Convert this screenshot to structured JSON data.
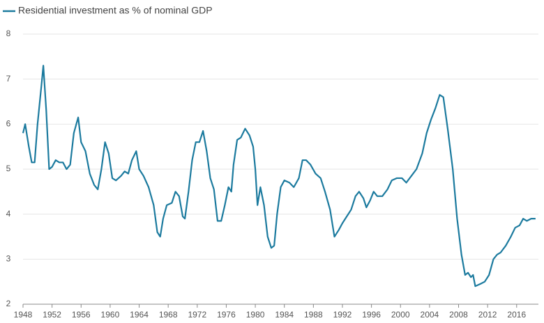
{
  "chart_data": {
    "type": "line",
    "x": [
      1948,
      1948.3,
      1948.8,
      1949.2,
      1949.6,
      1950,
      1950.5,
      1950.8,
      1951.2,
      1951.6,
      1952,
      1952.5,
      1953,
      1953.5,
      1954,
      1954.5,
      1955,
      1955.6,
      1956,
      1956.6,
      1957.2,
      1957.8,
      1958.3,
      1958.8,
      1959.3,
      1959.8,
      1960.3,
      1960.8,
      1961.5,
      1962,
      1962.5,
      1963,
      1963.6,
      1964,
      1964.6,
      1965.3,
      1966,
      1966.5,
      1966.9,
      1967.3,
      1967.8,
      1968.5,
      1969,
      1969.5,
      1970,
      1970.3,
      1970.8,
      1971.3,
      1971.8,
      1972.3,
      1972.8,
      1973.3,
      1973.8,
      1974.3,
      1974.8,
      1975.3,
      1975.8,
      1976.3,
      1976.7,
      1977,
      1977.5,
      1978,
      1978.6,
      1979.2,
      1979.7,
      1980,
      1980.3,
      1980.7,
      1981.2,
      1981.7,
      1982.2,
      1982.6,
      1983,
      1983.5,
      1984,
      1984.7,
      1985.3,
      1986,
      1986.5,
      1987,
      1987.6,
      1988.3,
      1989,
      1989.6,
      1990.3,
      1990.9,
      1991.5,
      1992,
      1992.6,
      1993.2,
      1993.8,
      1994.3,
      1994.9,
      1995.3,
      1995.8,
      1996.3,
      1996.8,
      1997.5,
      1998.2,
      1998.8,
      1999.5,
      2000.2,
      2000.8,
      2001.5,
      2002.2,
      2003,
      2003.6,
      2004.2,
      2004.8,
      2005.4,
      2005.9,
      2006.5,
      2007.2,
      2007.8,
      2008.4,
      2008.9,
      2009.3,
      2009.7,
      2010,
      2010.3,
      2011,
      2011.6,
      2012.2,
      2012.8,
      2013.3,
      2013.8,
      2014.5,
      2015.2,
      2015.8,
      2016.4,
      2016.9,
      2017.4,
      2018,
      2018.6
    ],
    "series": [
      {
        "name": "Residential investment as % of nominal GDP",
        "color": "#1b7a9e",
        "values": [
          5.8,
          6.0,
          5.5,
          5.15,
          5.15,
          6.0,
          6.8,
          7.3,
          6.3,
          5.0,
          5.05,
          5.2,
          5.15,
          5.15,
          5.0,
          5.1,
          5.8,
          6.15,
          5.6,
          5.4,
          4.9,
          4.65,
          4.55,
          5.0,
          5.6,
          5.35,
          4.8,
          4.75,
          4.85,
          4.95,
          4.9,
          5.2,
          5.4,
          5.0,
          4.85,
          4.6,
          4.2,
          3.6,
          3.5,
          3.9,
          4.2,
          4.25,
          4.5,
          4.4,
          3.95,
          3.9,
          4.5,
          5.2,
          5.6,
          5.6,
          5.85,
          5.4,
          4.8,
          4.55,
          3.85,
          3.85,
          4.2,
          4.6,
          4.5,
          5.1,
          5.65,
          5.7,
          5.9,
          5.75,
          5.5,
          5.0,
          4.2,
          4.6,
          4.2,
          3.5,
          3.25,
          3.3,
          4.0,
          4.6,
          4.75,
          4.7,
          4.6,
          4.8,
          5.2,
          5.2,
          5.1,
          4.9,
          4.8,
          4.5,
          4.1,
          3.5,
          3.65,
          3.8,
          3.95,
          4.1,
          4.4,
          4.5,
          4.35,
          4.15,
          4.3,
          4.5,
          4.4,
          4.4,
          4.55,
          4.75,
          4.8,
          4.8,
          4.7,
          4.85,
          5.0,
          5.35,
          5.8,
          6.1,
          6.35,
          6.65,
          6.6,
          5.9,
          5.0,
          3.9,
          3.1,
          2.65,
          2.7,
          2.6,
          2.65,
          2.4,
          2.45,
          2.5,
          2.65,
          3.0,
          3.1,
          3.15,
          3.3,
          3.5,
          3.7,
          3.75,
          3.9,
          3.85,
          3.9,
          3.9
        ]
      }
    ],
    "xlim": [
      1948,
      2019
    ],
    "xticks": [
      1948,
      1952,
      1956,
      1960,
      1964,
      1968,
      1972,
      1976,
      1980,
      1984,
      1988,
      1992,
      1996,
      2000,
      2004,
      2008,
      2012,
      2016
    ],
    "ylim": [
      2,
      8
    ],
    "yticks": [
      2,
      3,
      4,
      5,
      6,
      7,
      8
    ],
    "grid": true
  }
}
